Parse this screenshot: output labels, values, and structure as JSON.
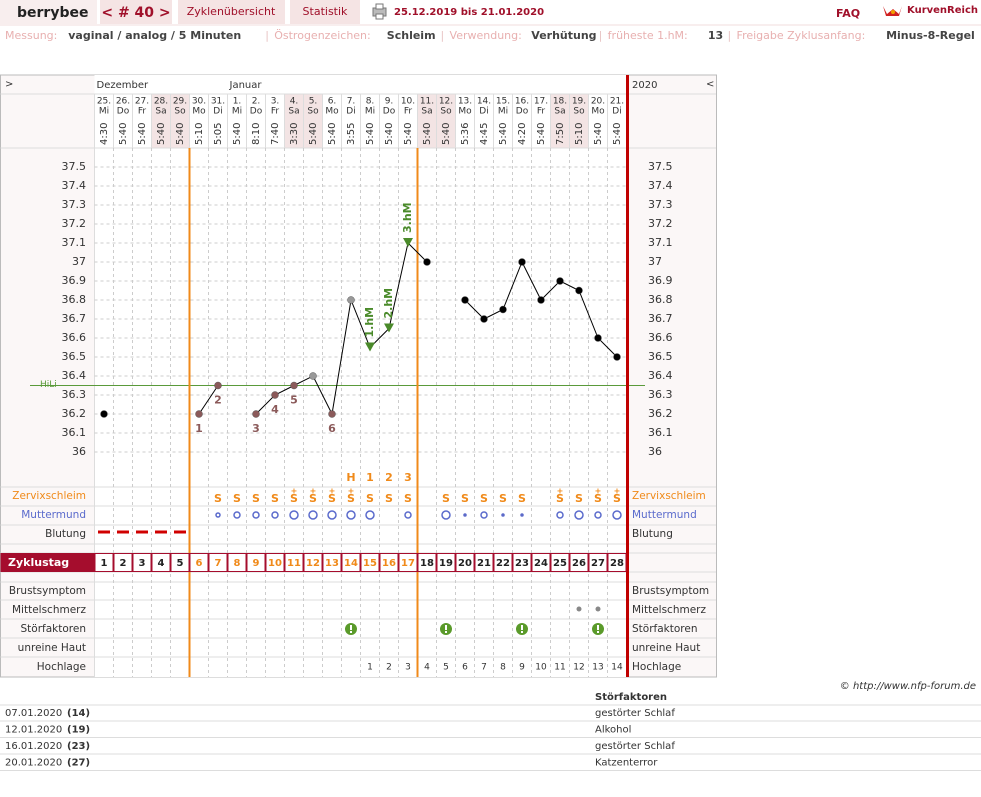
{
  "header": {
    "user": "berrybee",
    "cycle": "< # 40 >",
    "tabs": [
      "Zyklenübersicht",
      "Statistik"
    ],
    "period": "25.12.2019 bis 21.01.2020",
    "faq": "FAQ",
    "brand": "KurvenReich"
  },
  "settings": [
    {
      "label": "Messung:",
      "value": "vaginal / analog / 5 Minuten"
    },
    {
      "label": "Östrogenzeichen:",
      "value": "Schleim"
    },
    {
      "label": "Verwendung:",
      "value": "Verhütung"
    },
    {
      "label": "früheste 1.hM:",
      "value": "13"
    },
    {
      "label": "Freigabe Zyklusanfang:",
      "value": "Minus-8-Regel"
    }
  ],
  "separator": "|",
  "chart_data": {
    "type": "line",
    "nav_left": ">",
    "nav_right": "<",
    "year": "2020",
    "months": [
      "Dezember",
      null,
      null,
      null,
      null,
      null,
      null,
      "Januar",
      null,
      null,
      null,
      null,
      null,
      null,
      null,
      null,
      null,
      null,
      null,
      null,
      null,
      null,
      null,
      null,
      null,
      null,
      null,
      null
    ],
    "categories": [
      "25.",
      "26.",
      "27.",
      "28.",
      "29.",
      "30.",
      "31.",
      "1.",
      "2.",
      "3.",
      "4.",
      "5.",
      "6.",
      "7.",
      "8.",
      "9.",
      "10.",
      "11.",
      "12.",
      "13.",
      "14.",
      "15.",
      "16.",
      "17.",
      "18.",
      "19.",
      "20.",
      "21."
    ],
    "weekdays": [
      "Mi",
      "Do",
      "Fr",
      "Sa",
      "So",
      "Mo",
      "Di",
      "Mi",
      "Do",
      "Fr",
      "Sa",
      "So",
      "Mo",
      "Di",
      "Mi",
      "Do",
      "Fr",
      "Sa",
      "So",
      "Mo",
      "Di",
      "Mi",
      "Do",
      "Fr",
      "Sa",
      "So",
      "Mo",
      "Di"
    ],
    "times": [
      "4:30",
      "5:40",
      "5:40",
      "5:40",
      "5:40",
      "5:10",
      "5:05",
      "5:40",
      "8:10",
      "7:40",
      "3:30",
      "5:40",
      "5:40",
      "3:55",
      "5:40",
      "5:40",
      "5:40",
      "5:40",
      "5:40",
      "5:36",
      "4:45",
      "5:40",
      "4:20",
      "5:40",
      "7:50",
      "5:10",
      "5:40",
      "5:40"
    ],
    "weekend": [
      false,
      false,
      false,
      true,
      true,
      false,
      false,
      false,
      false,
      false,
      true,
      true,
      false,
      false,
      false,
      false,
      false,
      true,
      true,
      false,
      false,
      false,
      false,
      false,
      true,
      true,
      false,
      false
    ],
    "values": [
      36.2,
      null,
      null,
      null,
      null,
      36.2,
      36.35,
      null,
      36.2,
      36.3,
      36.35,
      36.4,
      36.2,
      36.8,
      36.55,
      36.65,
      37.1,
      37.0,
      null,
      36.8,
      36.7,
      36.75,
      37.0,
      36.8,
      36.9,
      36.85,
      36.6,
      36.5
    ],
    "color": "#000000",
    "marker_colors": [
      "#000000",
      null,
      null,
      null,
      null,
      "#8b5a5a",
      "#8b5a5a",
      null,
      "#8b5a5a",
      "#8b5a5a",
      "#8b5a5a",
      "#999999",
      "#8b5a5a",
      "#999999",
      "#4a8a2a",
      "#4a8a2a",
      "#4a8a2a",
      "#000000",
      null,
      "#000000",
      "#000000",
      "#000000",
      "#000000",
      "#000000",
      "#000000",
      "#000000",
      "#000000",
      "#000000"
    ],
    "point_labels": [
      null,
      null,
      null,
      null,
      null,
      1,
      2,
      null,
      3,
      4,
      5,
      null,
      6,
      null,
      null,
      null,
      null,
      null,
      null,
      null,
      null,
      null,
      null,
      null,
      null,
      null,
      null,
      null
    ],
    "hm_labels": [
      null,
      null,
      null,
      null,
      null,
      null,
      null,
      null,
      null,
      null,
      null,
      null,
      null,
      null,
      "1.hM",
      "2.hM",
      "3.hM",
      null,
      null,
      null,
      null,
      null,
      null,
      null,
      null,
      null,
      null,
      null
    ],
    "ylim": [
      35.8,
      37.6
    ],
    "yticks": [
      36,
      36.1,
      36.2,
      36.3,
      36.4,
      36.5,
      36.6,
      36.7,
      36.8,
      36.9,
      37,
      37.1,
      37.2,
      37.3,
      37.4,
      37.5
    ],
    "grid": true,
    "hili": {
      "label": "HiLi",
      "value": 36.35,
      "color": "#5a9a3a"
    },
    "peak_marks": [
      null,
      null,
      null,
      null,
      null,
      null,
      null,
      null,
      null,
      null,
      null,
      null,
      null,
      "H",
      "1",
      "2",
      "3",
      null,
      null,
      null,
      null,
      null,
      null,
      null,
      null,
      null,
      null,
      null
    ],
    "cervix_plus": [
      null,
      null,
      null,
      null,
      null,
      null,
      null,
      null,
      null,
      null,
      "+",
      "+",
      "+",
      "+",
      null,
      null,
      null,
      null,
      null,
      null,
      null,
      null,
      null,
      null,
      "+",
      null,
      "+",
      "+"
    ],
    "cervix": [
      null,
      null,
      null,
      null,
      null,
      null,
      "S",
      "S",
      "S",
      "S",
      "S",
      "S",
      "S",
      "S",
      "S",
      "S",
      "S",
      null,
      "S",
      "S",
      "S",
      "S",
      "S",
      null,
      "S",
      "S",
      "S",
      "S"
    ],
    "rows": {
      "cervix": "Zervixschleim",
      "mouth": "Muttermund",
      "bleeding": "Blutung",
      "breast": "Brustsymptom",
      "midpain": "Mittelschmerz",
      "disturb": "Störfaktoren",
      "skin": "unreine Haut",
      "high": "Hochlage"
    },
    "cycle_day_label": "Zyklustag",
    "cycle_days": [
      1,
      2,
      3,
      4,
      5,
      6,
      7,
      8,
      9,
      10,
      11,
      12,
      13,
      14,
      15,
      16,
      17,
      18,
      19,
      20,
      21,
      22,
      23,
      24,
      25,
      26,
      27,
      28
    ],
    "fertile": [
      false,
      false,
      false,
      false,
      false,
      true,
      true,
      true,
      true,
      true,
      true,
      true,
      true,
      true,
      true,
      true,
      true,
      false,
      false,
      false,
      false,
      false,
      false,
      false,
      false,
      false,
      false,
      false
    ],
    "hochlage": [
      null,
      null,
      null,
      null,
      null,
      null,
      null,
      null,
      null,
      null,
      null,
      null,
      null,
      null,
      1,
      2,
      3,
      4,
      5,
      6,
      7,
      8,
      9,
      10,
      11,
      12,
      13,
      14
    ]
  },
  "footer": {
    "copyright": "© http://www.nfp-forum.de",
    "table": {
      "header": "Störfaktoren",
      "rows": [
        [
          "07.01.2020",
          "(14)",
          "gestörter Schlaf"
        ],
        [
          "12.01.2020",
          "(19)",
          "Alkohol"
        ],
        [
          "16.01.2020",
          "(23)",
          "gestörter Schlaf"
        ],
        [
          "20.01.2020",
          "(27)",
          "Katzenterror"
        ]
      ]
    }
  }
}
